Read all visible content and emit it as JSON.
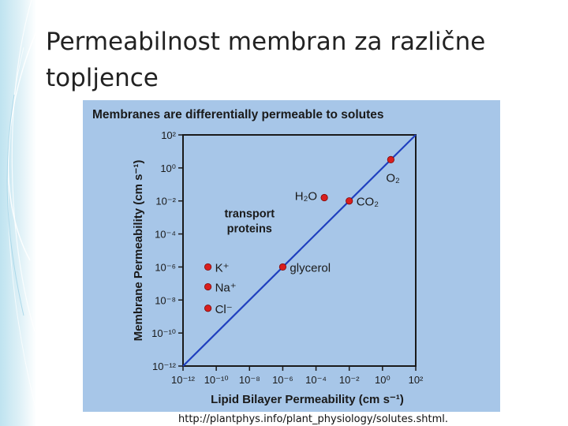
{
  "slide": {
    "title": "Permeabilnost membran za različne topljence",
    "source": "http://plantphys.info/plant_physiology/solutes.shtml."
  },
  "colors": {
    "panel_bg": "#a7c6e8",
    "line": "#1f3fbf",
    "point": "#d91e1e",
    "text": "#1a1a1a"
  },
  "chart_data": {
    "type": "scatter",
    "title": "Membranes are differentially permeable to solutes",
    "xlabel": "Lipid Bilayer Permeability (cm s⁻¹)",
    "ylabel": "Membrane Permeability (cm s⁻¹)",
    "xlim_log10": [
      -12,
      2
    ],
    "ylim_log10": [
      -12,
      2
    ],
    "x_ticks": [
      {
        "exp": -12,
        "label": "10⁻¹²"
      },
      {
        "exp": -10,
        "label": "10⁻¹⁰"
      },
      {
        "exp": -8,
        "label": "10⁻⁸"
      },
      {
        "exp": -6,
        "label": "10⁻⁶"
      },
      {
        "exp": -4,
        "label": "10⁻⁴"
      },
      {
        "exp": -2,
        "label": "10⁻²"
      },
      {
        "exp": 0,
        "label": "10⁰"
      },
      {
        "exp": 2,
        "label": "10²"
      }
    ],
    "y_ticks": [
      {
        "exp": 2,
        "label": "10²"
      },
      {
        "exp": 0,
        "label": "10⁰"
      },
      {
        "exp": -2,
        "label": "10⁻²"
      },
      {
        "exp": -4,
        "label": "10⁻⁴"
      },
      {
        "exp": -6,
        "label": "10⁻⁶"
      },
      {
        "exp": -8,
        "label": "10⁻⁸"
      },
      {
        "exp": -10,
        "label": "10⁻¹⁰"
      },
      {
        "exp": -12,
        "label": "10⁻¹²"
      }
    ],
    "reference_line": {
      "label": "",
      "from_log10": [
        -12,
        -12
      ],
      "to_log10": [
        2,
        2
      ]
    },
    "points": [
      {
        "label": "O₂",
        "x_log10": 0.5,
        "y_log10": 0.5,
        "label_pos": "below"
      },
      {
        "label": "H₂O",
        "x_log10": -3.5,
        "y_log10": -1.8,
        "label_pos": "left"
      },
      {
        "label": "CO₂",
        "x_log10": -2.0,
        "y_log10": -2.0,
        "label_pos": "right"
      },
      {
        "label": "glycerol",
        "x_log10": -6.0,
        "y_log10": -6.0,
        "label_pos": "right"
      },
      {
        "label": "K⁺",
        "x_log10": -10.5,
        "y_log10": -6.0,
        "label_pos": "right"
      },
      {
        "label": "Na⁺",
        "x_log10": -10.5,
        "y_log10": -7.2,
        "label_pos": "right"
      },
      {
        "label": "Cl⁻",
        "x_log10": -10.5,
        "y_log10": -8.5,
        "label_pos": "right"
      }
    ],
    "annotations": [
      {
        "text": "transport",
        "x_log10": -8.0,
        "y_log10": -3.0
      },
      {
        "text": "proteins",
        "x_log10": -8.0,
        "y_log10": -3.9
      }
    ]
  }
}
